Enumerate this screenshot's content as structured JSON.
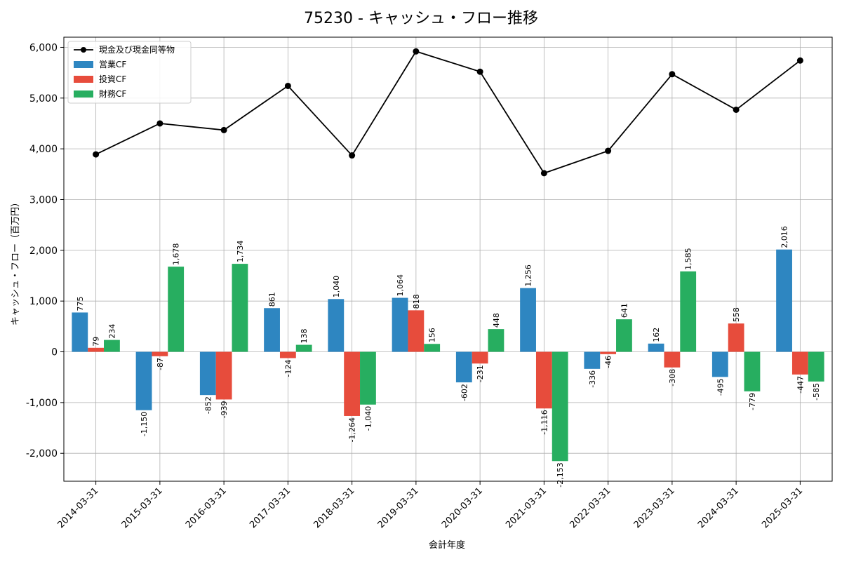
{
  "chart_data": {
    "type": "bar",
    "title": "75230 - キャッシュ・フロー推移",
    "xlabel": "会計年度",
    "ylabel": "キャッシュ・フロー（百万円）",
    "ylim": [
      -2550,
      6200
    ],
    "yticks": [
      -2000,
      -1000,
      0,
      1000,
      2000,
      3000,
      4000,
      5000,
      6000
    ],
    "ytick_labels": [
      "-2,000",
      "-1,000",
      "0",
      "1,000",
      "2,000",
      "3,000",
      "4,000",
      "5,000",
      "6,000"
    ],
    "grid": true,
    "legend_position": "top-left",
    "categories": [
      "2014-03-31",
      "2015-03-31",
      "2016-03-31",
      "2017-03-31",
      "2018-03-31",
      "2019-03-31",
      "2020-03-31",
      "2021-03-31",
      "2022-03-31",
      "2023-03-31",
      "2024-03-31",
      "2025-03-31"
    ],
    "series": [
      {
        "name": "営業CF",
        "type": "bar",
        "color": "#2e86c1",
        "values": [
          775,
          -1150,
          -852,
          861,
          1040,
          1064,
          -602,
          1256,
          -336,
          162,
          -495,
          2016
        ],
        "labels": [
          "775",
          "-1,150",
          "-852",
          "861",
          "1,040",
          "1,064",
          "-602",
          "1,256",
          "-336",
          "162",
          "-495",
          "2,016"
        ]
      },
      {
        "name": "投資CF",
        "type": "bar",
        "color": "#e74c3c",
        "values": [
          79,
          -87,
          -939,
          -124,
          -1264,
          818,
          -231,
          -1116,
          -46,
          -308,
          558,
          -447
        ],
        "labels": [
          "79",
          "-87",
          "-939",
          "-124",
          "-1,264",
          "818",
          "-231",
          "-1,116",
          "-46",
          "-308",
          "558",
          "-447"
        ]
      },
      {
        "name": "財務CF",
        "type": "bar",
        "color": "#27ae60",
        "values": [
          234,
          1678,
          1734,
          138,
          -1040,
          156,
          448,
          -2153,
          641,
          1585,
          -779,
          -585
        ],
        "labels": [
          "234",
          "1,678",
          "1,734",
          "138",
          "-1,040",
          "156",
          "448",
          "-2,153",
          "641",
          "1,585",
          "-779",
          "-585"
        ]
      },
      {
        "name": "現金及び現金同等物",
        "type": "line",
        "color": "#000000",
        "values": [
          3890,
          4500,
          4370,
          5240,
          3870,
          5920,
          5520,
          3520,
          3960,
          5470,
          4770,
          5740
        ]
      }
    ]
  }
}
